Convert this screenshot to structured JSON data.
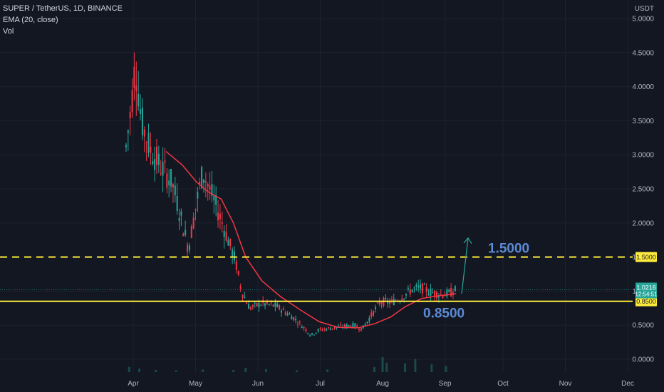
{
  "header": {
    "symbol": "SUPER / TetherUS, 1D, BINANCE",
    "ema": "EMA (20, close)",
    "vol": "Vol"
  },
  "chart_data": {
    "type": "candlestick",
    "currency_label": "USDT",
    "y_ticks": [
      "0.0000",
      "0.5000",
      "1.0000",
      "1.5000",
      "2.0000",
      "2.5000",
      "3.0000",
      "3.5000",
      "4.0000",
      "4.5000",
      "5.0000"
    ],
    "ylim": [
      0,
      5
    ],
    "x_ticks": [
      "Apr",
      "May",
      "Jun",
      "Jul",
      "Aug",
      "Sep",
      "Oct",
      "Nov",
      "Dec"
    ],
    "price_badge": {
      "value": "1.0216",
      "countdown": "12:54:51",
      "color": "#26a69a"
    },
    "levels": [
      {
        "value": 1.5,
        "label": "1.5000",
        "style": "dashed",
        "color": "#ffeb3b"
      },
      {
        "value": 0.85,
        "label": "0.8500",
        "style": "solid",
        "color": "#ffeb3b"
      }
    ],
    "annotations": [
      {
        "text": "1.5000",
        "value": 1.5
      },
      {
        "text": "0.8500",
        "value": 0.85
      }
    ],
    "projection": {
      "from_value": 0.96,
      "to_value": 1.78,
      "color": "#26a69a"
    },
    "ema_color": "#f23645",
    "up_color": "#26a69a",
    "down_color": "#f23645",
    "price_path": [
      {
        "x": "Mar 28",
        "y": 3.0
      },
      {
        "x": "Mar 31",
        "y": 3.7
      },
      {
        "x": "Apr 2",
        "y": 4.35
      },
      {
        "x": "Apr 5",
        "y": 3.5
      },
      {
        "x": "Apr 9",
        "y": 3.1
      },
      {
        "x": "Apr 14",
        "y": 2.85
      },
      {
        "x": "Apr 20",
        "y": 2.6
      },
      {
        "x": "Apr 25",
        "y": 2.0
      },
      {
        "x": "Apr 28",
        "y": 1.62
      },
      {
        "x": "May 2",
        "y": 2.3
      },
      {
        "x": "May 5",
        "y": 2.75
      },
      {
        "x": "May 9",
        "y": 2.45
      },
      {
        "x": "May 14",
        "y": 2.05
      },
      {
        "x": "May 18",
        "y": 1.7
      },
      {
        "x": "May 21",
        "y": 1.45
      },
      {
        "x": "May 24",
        "y": 1.0
      },
      {
        "x": "May 28",
        "y": 0.75
      },
      {
        "x": "Jun 3",
        "y": 0.82
      },
      {
        "x": "Jun 10",
        "y": 0.78
      },
      {
        "x": "Jun 18",
        "y": 0.62
      },
      {
        "x": "Jun 24",
        "y": 0.45
      },
      {
        "x": "Jun 27",
        "y": 0.35
      },
      {
        "x": "Jul 1",
        "y": 0.43
      },
      {
        "x": "Jul 10",
        "y": 0.47
      },
      {
        "x": "Jul 18",
        "y": 0.5
      },
      {
        "x": "Jul 22",
        "y": 0.44
      },
      {
        "x": "Jul 26",
        "y": 0.62
      },
      {
        "x": "Jul 31",
        "y": 0.85
      },
      {
        "x": "Aug 5",
        "y": 0.83
      },
      {
        "x": "Aug 10",
        "y": 0.9
      },
      {
        "x": "Aug 15",
        "y": 1.02
      },
      {
        "x": "Aug 20",
        "y": 1.05
      },
      {
        "x": "Aug 25",
        "y": 0.98
      },
      {
        "x": "Aug 30",
        "y": 0.95
      },
      {
        "x": "Sep 3",
        "y": 0.97
      },
      {
        "x": "Sep 6",
        "y": 1.02
      }
    ],
    "ema_path": [
      {
        "x": "Apr 17",
        "y": 3.05
      },
      {
        "x": "Apr 25",
        "y": 2.85
      },
      {
        "x": "May 2",
        "y": 2.6
      },
      {
        "x": "May 8",
        "y": 2.45
      },
      {
        "x": "May 14",
        "y": 2.35
      },
      {
        "x": "May 20",
        "y": 2.0
      },
      {
        "x": "May 26",
        "y": 1.5
      },
      {
        "x": "Jun 3",
        "y": 1.15
      },
      {
        "x": "Jun 12",
        "y": 0.92
      },
      {
        "x": "Jun 22",
        "y": 0.72
      },
      {
        "x": "Jul 1",
        "y": 0.55
      },
      {
        "x": "Jul 10",
        "y": 0.47
      },
      {
        "x": "Jul 20",
        "y": 0.46
      },
      {
        "x": "Jul 28",
        "y": 0.52
      },
      {
        "x": "Aug 5",
        "y": 0.62
      },
      {
        "x": "Aug 12",
        "y": 0.77
      },
      {
        "x": "Aug 20",
        "y": 0.89
      },
      {
        "x": "Aug 28",
        "y": 0.93
      },
      {
        "x": "Sep 6",
        "y": 0.96
      }
    ],
    "volume_bars": [
      {
        "x": "Mar 30",
        "y": 0.12
      },
      {
        "x": "Apr 4",
        "y": 0.08
      },
      {
        "x": "Apr 12",
        "y": 0.05
      },
      {
        "x": "Apr 22",
        "y": 0.04
      },
      {
        "x": "May 5",
        "y": 0.06
      },
      {
        "x": "May 20",
        "y": 0.05
      },
      {
        "x": "May 26",
        "y": 0.1
      },
      {
        "x": "Jun 5",
        "y": 0.07
      },
      {
        "x": "Jun 20",
        "y": 0.04
      },
      {
        "x": "Jul 5",
        "y": 0.06
      },
      {
        "x": "Jul 28",
        "y": 0.12
      },
      {
        "x": "Aug 1",
        "y": 0.35
      },
      {
        "x": "Aug 3",
        "y": 0.22
      },
      {
        "x": "Aug 12",
        "y": 0.2
      },
      {
        "x": "Aug 17",
        "y": 0.3
      },
      {
        "x": "Aug 25",
        "y": 0.18
      },
      {
        "x": "Sep 1",
        "y": 0.14
      }
    ]
  }
}
